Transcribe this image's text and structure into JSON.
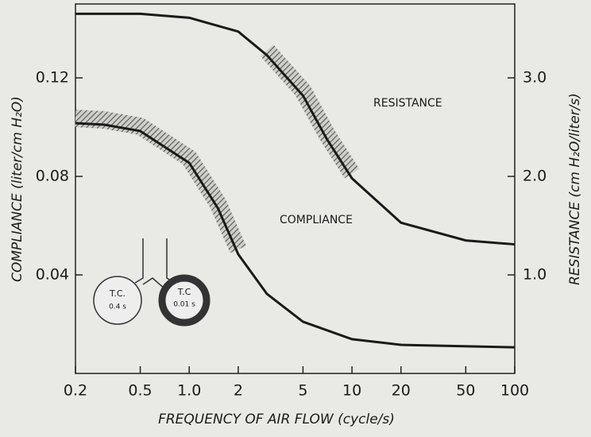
{
  "chart_data": {
    "type": "line",
    "xscale": "log",
    "x_label": "FREQUENCY OF AIR FLOW (cycle/s)",
    "y_label": "COMPLIANCE (liter/cm H₂O)",
    "y2_label": "RESISTANCE (cm H₂O/liter/s)",
    "xlim": [
      0.2,
      100
    ],
    "xticks": [
      0.2,
      0.5,
      {
        "value": 1,
        "label": "1.0"
      },
      2,
      5,
      10,
      20,
      50,
      100
    ],
    "ylim": [
      0,
      0.15
    ],
    "yticks": [
      0.04,
      0.08,
      0.12
    ],
    "y2lim": [
      0,
      3.75
    ],
    "y2ticks": [
      {
        "value": 1,
        "label": "1.0"
      },
      {
        "value": 2,
        "label": "2.0"
      },
      {
        "value": 3,
        "label": "3.0"
      }
    ],
    "series": [
      {
        "name": "COMPLIANCE",
        "color": "#1a1a1a",
        "x": [
          0.2,
          0.3,
          0.5,
          1,
          1.5,
          2,
          3,
          5,
          10,
          20,
          100
        ],
        "values": [
          0.1016,
          0.101,
          0.0984,
          0.0855,
          0.0671,
          0.0484,
          0.0323,
          0.021,
          0.0139,
          0.0116,
          0.0106
        ]
      },
      {
        "name": "RESISTANCE",
        "color": "#1a1a1a",
        "axis": "y2",
        "x": [
          0.2,
          0.5,
          1,
          2,
          3,
          5,
          7,
          10,
          20,
          50,
          100
        ],
        "values": [
          3.65,
          3.65,
          3.61,
          3.47,
          3.23,
          2.82,
          2.38,
          1.98,
          1.53,
          1.35,
          1.31
        ]
      }
    ],
    "inset": {
      "left": [
        "T.C.",
        "0.4 s"
      ],
      "right": [
        "T.C",
        "0.01 s"
      ]
    }
  }
}
